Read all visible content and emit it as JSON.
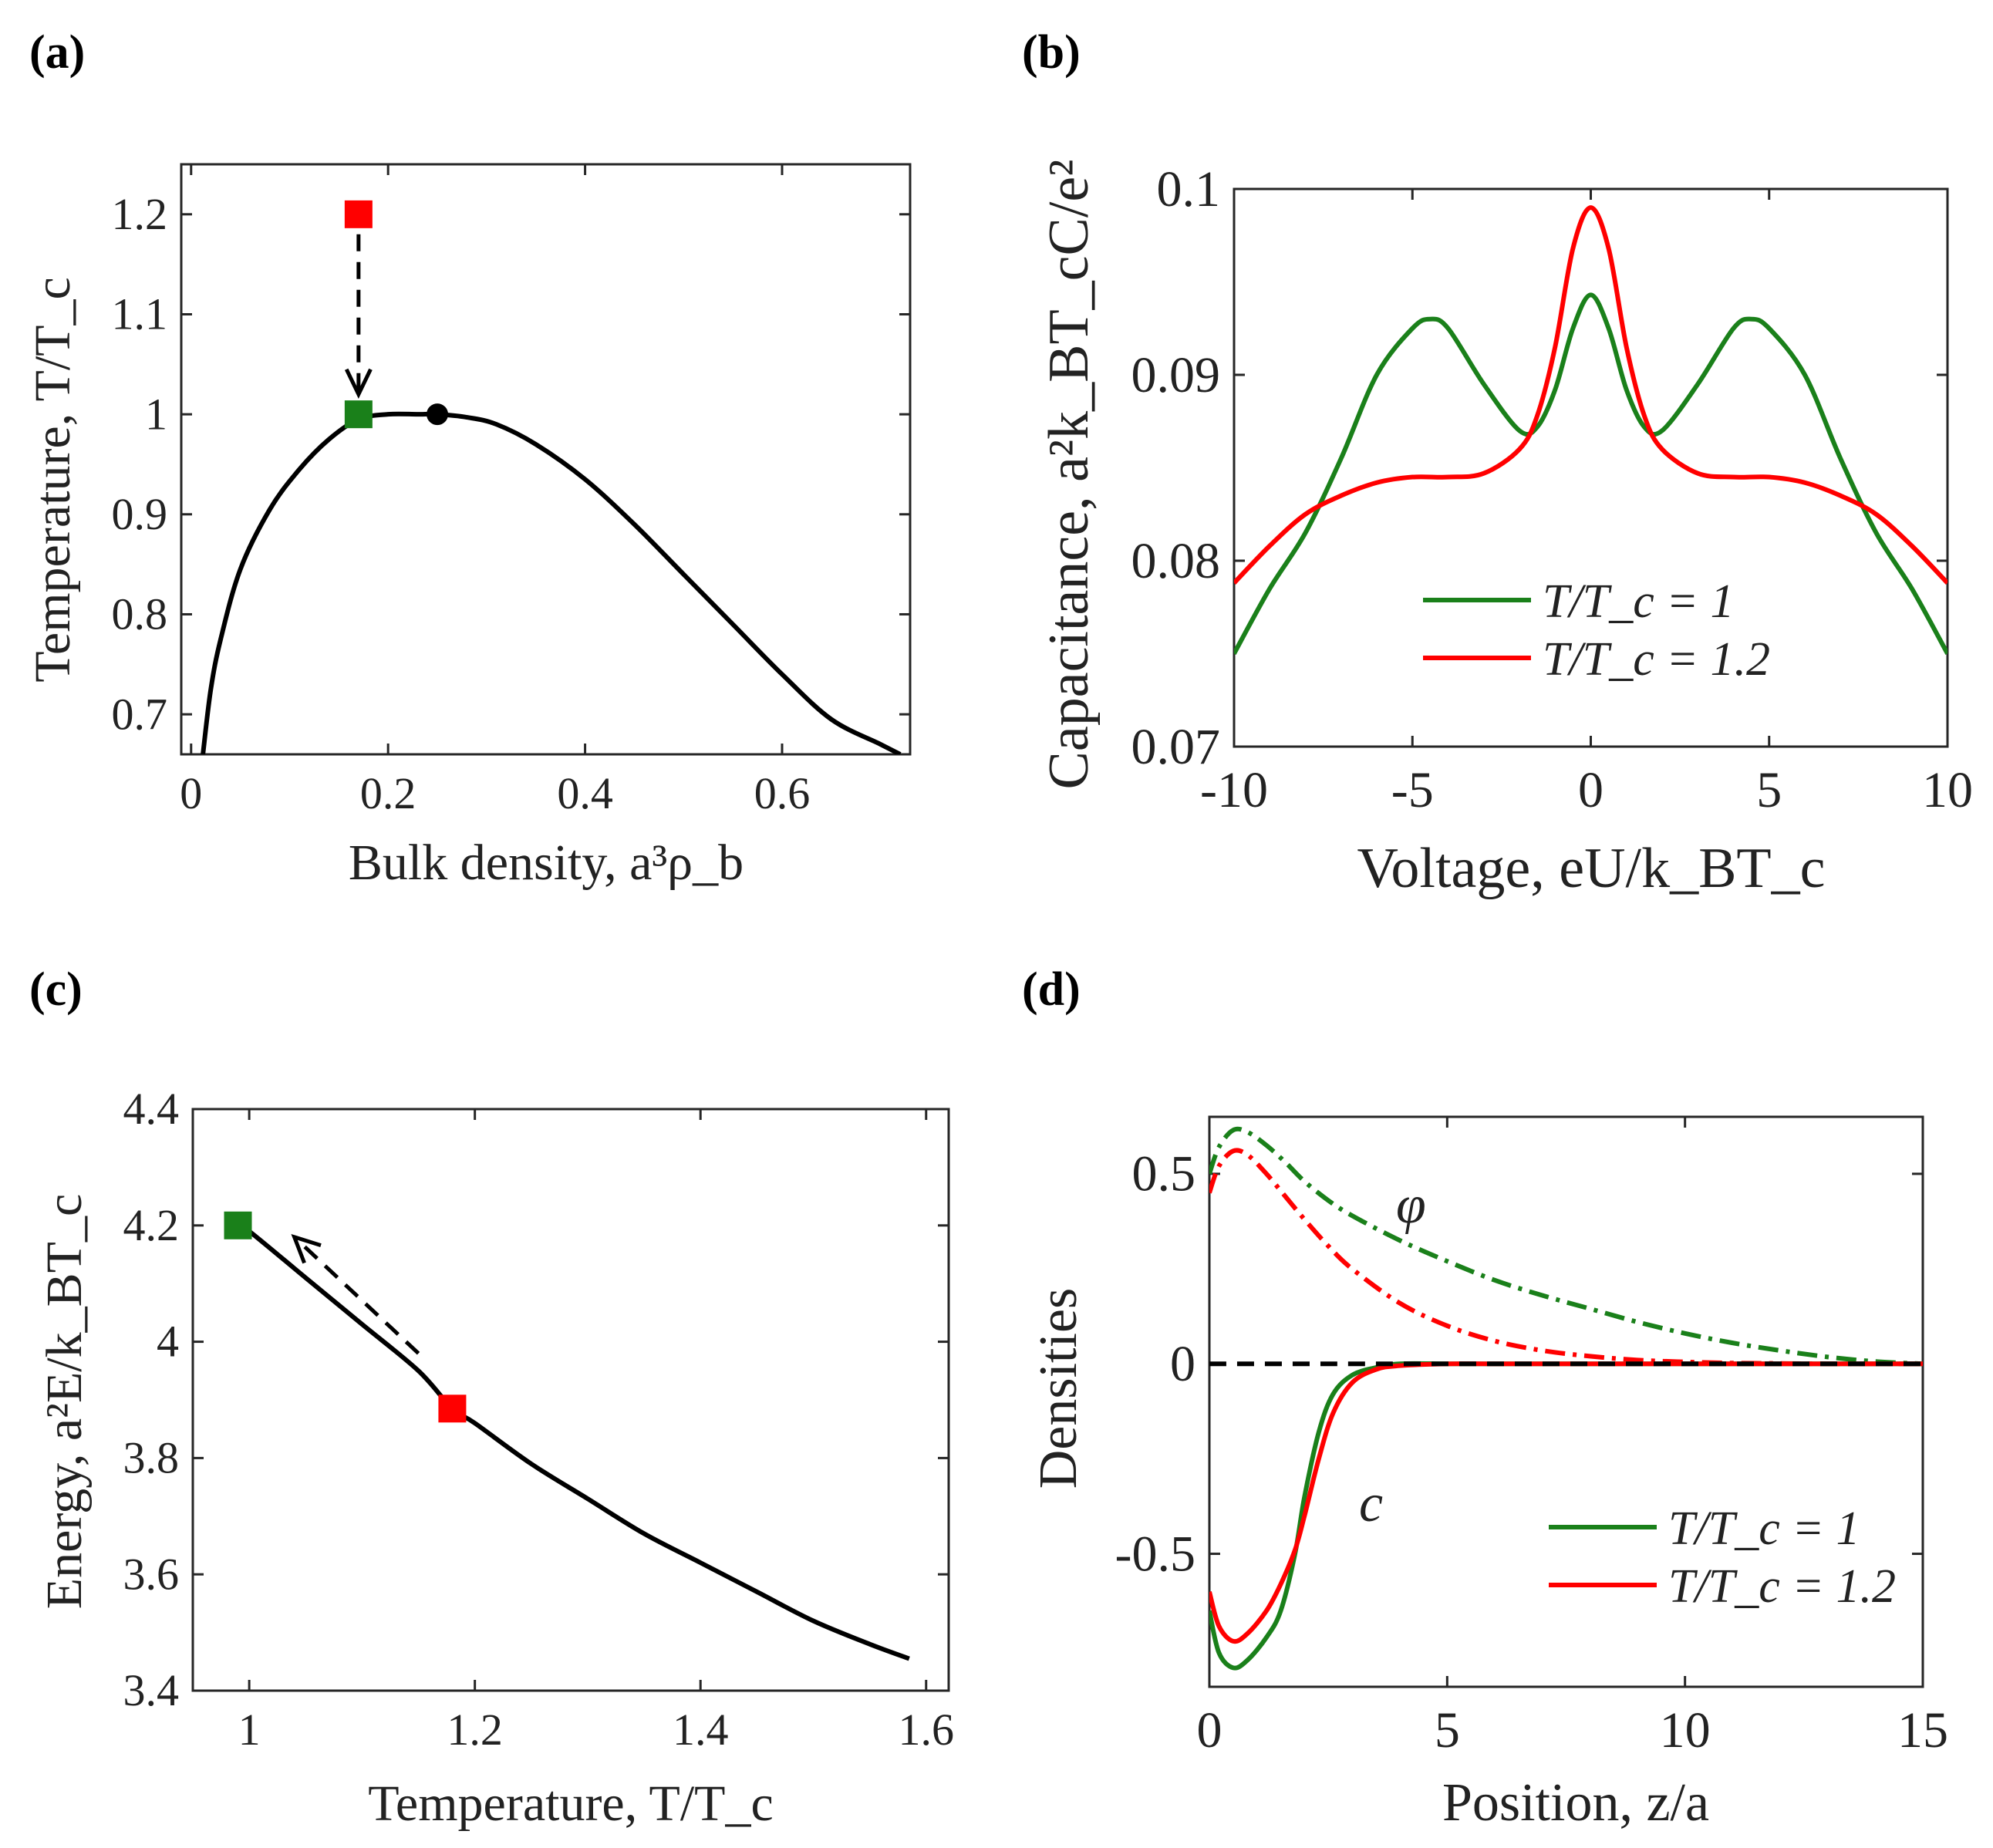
{
  "colors": {
    "green": "#1a801a",
    "red": "#ff0000",
    "black": "#000000"
  },
  "panels": {
    "a": {
      "label": "(a)",
      "xlabel": "Bulk density, a³ρ_b",
      "ylabel": "Temperature, T/T_c"
    },
    "b": {
      "label": "(b)",
      "xlabel": "Voltage, eU/k_BT_c",
      "ylabel": "Capacitance, a²k_BT_cC/e²"
    },
    "c": {
      "label": "(c)",
      "xlabel": "Temperature, T/T_c",
      "ylabel": "Energy, a²E/k_BT_c"
    },
    "d": {
      "label": "(d)",
      "xlabel": "Position, z/a",
      "ylabel": "Densities",
      "annot_phi": "φ",
      "annot_c": "c"
    }
  },
  "chart_data": [
    {
      "id": "a",
      "type": "line",
      "title": "",
      "xlabel": "Bulk density, a³ρ_b",
      "ylabel": "Temperature, T/T_c",
      "xlim": [
        -0.01,
        0.73
      ],
      "ylim": [
        0.66,
        1.25
      ],
      "xticks": [
        0,
        0.2,
        0.4,
        0.6
      ],
      "xtick_labels": [
        "0",
        "0.2",
        "0.4",
        "0.6"
      ],
      "yticks": [
        0.7,
        0.8,
        0.9,
        1.0,
        1.1,
        1.2
      ],
      "ytick_labels": [
        "0.7",
        "0.8",
        "0.9",
        "1",
        "1.1",
        "1.2"
      ],
      "series": [
        {
          "name": "coexistence curve",
          "color": "#000000",
          "x": [
            0.012,
            0.02,
            0.03,
            0.05,
            0.08,
            0.11,
            0.14,
            0.17,
            0.2,
            0.23,
            0.25,
            0.28,
            0.31,
            0.35,
            0.4,
            0.45,
            0.5,
            0.55,
            0.6,
            0.65,
            0.7,
            0.72
          ],
          "y": [
            0.66,
            0.725,
            0.775,
            0.845,
            0.905,
            0.945,
            0.975,
            0.995,
            1.0,
            1.0,
            1.0,
            0.997,
            0.99,
            0.97,
            0.935,
            0.89,
            0.84,
            0.79,
            0.74,
            0.695,
            0.67,
            0.66
          ]
        }
      ],
      "markers": [
        {
          "name": "start-state",
          "x": 0.17,
          "y": 1.2,
          "shape": "square",
          "color": "#ff0000"
        },
        {
          "name": "end-state",
          "x": 0.17,
          "y": 1.0,
          "shape": "square",
          "color": "#1a801a"
        },
        {
          "name": "critical-point",
          "x": 0.25,
          "y": 1.0,
          "shape": "circle",
          "color": "#000000"
        }
      ],
      "arrow": {
        "from": [
          0.17,
          1.18
        ],
        "to": [
          0.17,
          1.02
        ],
        "style": "dashed"
      }
    },
    {
      "id": "b",
      "type": "line",
      "title": "",
      "xlabel": "Voltage, eU/k_BT_c",
      "ylabel": "Capacitance, a²k_BT_cC/e²",
      "xlim": [
        -10,
        10
      ],
      "ylim": [
        0.07,
        0.1
      ],
      "xticks": [
        -10,
        -5,
        0,
        5,
        10
      ],
      "xtick_labels": [
        "-10",
        "-5",
        "0",
        "5",
        "10"
      ],
      "yticks": [
        0.07,
        0.08,
        0.09,
        0.1
      ],
      "ytick_labels": [
        "0.07",
        "0.08",
        "0.09",
        "0.1"
      ],
      "legend": {
        "location": "lower-center",
        "entries": [
          "T/T_c = 1",
          "T/T_c = 1.2"
        ]
      },
      "series": [
        {
          "name": "T/T_c = 1",
          "color": "#1a801a",
          "x": [
            -10,
            -9,
            -8,
            -7,
            -6,
            -5,
            -4.5,
            -4,
            -3,
            -2,
            -1.5,
            -1,
            -0.5,
            0,
            0.5,
            1,
            1.5,
            2,
            3,
            4,
            4.5,
            5,
            6,
            7,
            8,
            9,
            10
          ],
          "y": [
            0.075,
            0.0785,
            0.0815,
            0.0855,
            0.09,
            0.0925,
            0.093,
            0.0925,
            0.0895,
            0.087,
            0.0872,
            0.0892,
            0.0925,
            0.0943,
            0.0925,
            0.0892,
            0.0872,
            0.087,
            0.0895,
            0.0925,
            0.093,
            0.0925,
            0.09,
            0.0855,
            0.0815,
            0.0785,
            0.075
          ]
        },
        {
          "name": "T/T_c = 1.2",
          "color": "#ff0000",
          "x": [
            -10,
            -9,
            -8,
            -7,
            -6,
            -5,
            -4,
            -3,
            -2,
            -1.5,
            -1,
            -0.5,
            0,
            0.5,
            1,
            1.5,
            2,
            3,
            4,
            5,
            6,
            7,
            8,
            9,
            10
          ],
          "y": [
            0.0788,
            0.0808,
            0.0825,
            0.0835,
            0.0842,
            0.0845,
            0.0845,
            0.0847,
            0.086,
            0.0878,
            0.0915,
            0.0968,
            0.099,
            0.0968,
            0.0915,
            0.0878,
            0.086,
            0.0847,
            0.0845,
            0.0845,
            0.0842,
            0.0835,
            0.0825,
            0.0808,
            0.0788
          ]
        }
      ]
    },
    {
      "id": "c",
      "type": "line",
      "title": "",
      "xlabel": "Temperature, T/T_c",
      "ylabel": "Energy, a²E/k_BT_c",
      "xlim": [
        0.95,
        1.62
      ],
      "ylim": [
        3.4,
        4.4
      ],
      "xticks": [
        1.0,
        1.2,
        1.4,
        1.6
      ],
      "xtick_labels": [
        "1",
        "1.2",
        "1.4",
        "1.6"
      ],
      "yticks": [
        3.4,
        3.6,
        3.8,
        4.0,
        4.2,
        4.4
      ],
      "ytick_labels": [
        "3.4",
        "3.6",
        "3.8",
        "4",
        "4.2",
        "4.4"
      ],
      "series": [
        {
          "name": "energy",
          "color": "#000000",
          "x": [
            0.99,
            1.0,
            1.05,
            1.1,
            1.15,
            1.18,
            1.2,
            1.25,
            1.3,
            1.35,
            1.4,
            1.45,
            1.5,
            1.55,
            1.585
          ],
          "y": [
            4.2,
            4.19,
            4.11,
            4.03,
            3.95,
            3.885,
            3.86,
            3.79,
            3.73,
            3.67,
            3.62,
            3.57,
            3.52,
            3.48,
            3.455
          ]
        }
      ],
      "markers": [
        {
          "name": "end-state",
          "x": 0.99,
          "y": 4.2,
          "shape": "square",
          "color": "#1a801a"
        },
        {
          "name": "start-state",
          "x": 1.18,
          "y": 3.885,
          "shape": "square",
          "color": "#ff0000"
        }
      ],
      "arrow": {
        "from": [
          1.15,
          3.98
        ],
        "to": [
          1.04,
          4.18
        ],
        "style": "dashed"
      }
    },
    {
      "id": "d",
      "type": "line",
      "title": "",
      "xlabel": "Position, z/a",
      "ylabel": "Densities",
      "xlim": [
        0,
        15
      ],
      "ylim": [
        -0.85,
        0.65
      ],
      "xticks": [
        0,
        5,
        10,
        15
      ],
      "xtick_labels": [
        "0",
        "5",
        "10",
        "15"
      ],
      "yticks": [
        -0.5,
        0,
        0.5
      ],
      "ytick_labels": [
        "-0.5",
        "0",
        "0.5"
      ],
      "legend": {
        "location": "bottom-right",
        "entries": [
          "T/T_c = 1",
          "T/T_c = 1.2"
        ]
      },
      "annotations": [
        "φ",
        "c"
      ],
      "series": [
        {
          "name": "φ, T/T_c = 1",
          "color": "#1a801a",
          "dash": "dashdot",
          "x": [
            0,
            0.2,
            0.5,
            0.8,
            1.2,
            1.6,
            2,
            2.5,
            3,
            4,
            5,
            6,
            7,
            8,
            9,
            10,
            11,
            12,
            13,
            14,
            15
          ],
          "y": [
            0.5,
            0.57,
            0.615,
            0.61,
            0.575,
            0.53,
            0.48,
            0.43,
            0.39,
            0.325,
            0.27,
            0.22,
            0.18,
            0.145,
            0.11,
            0.08,
            0.055,
            0.035,
            0.018,
            0.006,
            0
          ]
        },
        {
          "name": "φ, T/T_c = 1.2",
          "color": "#ff0000",
          "dash": "dashdot",
          "x": [
            0,
            0.2,
            0.5,
            0.8,
            1.2,
            1.6,
            2,
            2.5,
            3,
            4,
            5,
            6,
            7,
            8,
            9,
            10,
            11,
            12,
            13,
            14,
            15
          ],
          "y": [
            0.45,
            0.52,
            0.56,
            0.55,
            0.5,
            0.44,
            0.38,
            0.31,
            0.25,
            0.16,
            0.1,
            0.06,
            0.035,
            0.02,
            0.01,
            0.005,
            0.002,
            0.001,
            0,
            0,
            0
          ]
        },
        {
          "name": "c, T/T_c = 1",
          "color": "#1a801a",
          "x": [
            0,
            0.2,
            0.5,
            0.8,
            1.2,
            1.5,
            1.8,
            2,
            2.3,
            2.6,
            3,
            3.5,
            4,
            5,
            6,
            8,
            10,
            12,
            15
          ],
          "y": [
            -0.65,
            -0.76,
            -0.8,
            -0.78,
            -0.72,
            -0.65,
            -0.5,
            -0.35,
            -0.18,
            -0.08,
            -0.03,
            -0.01,
            0,
            0,
            0,
            0,
            0,
            0,
            0
          ]
        },
        {
          "name": "c, T/T_c = 1.2",
          "color": "#ff0000",
          "x": [
            0,
            0.2,
            0.5,
            0.8,
            1.2,
            1.5,
            1.8,
            2,
            2.3,
            2.6,
            3,
            3.5,
            4,
            5,
            6,
            8,
            10,
            12,
            15
          ],
          "y": [
            -0.6,
            -0.69,
            -0.73,
            -0.71,
            -0.65,
            -0.58,
            -0.49,
            -0.4,
            -0.25,
            -0.13,
            -0.05,
            -0.015,
            -0.005,
            0,
            0,
            0,
            0,
            0,
            0
          ]
        },
        {
          "name": "zero line",
          "color": "#000000",
          "dash": "dashed",
          "x": [
            0,
            15
          ],
          "y": [
            0,
            0
          ]
        }
      ]
    }
  ]
}
